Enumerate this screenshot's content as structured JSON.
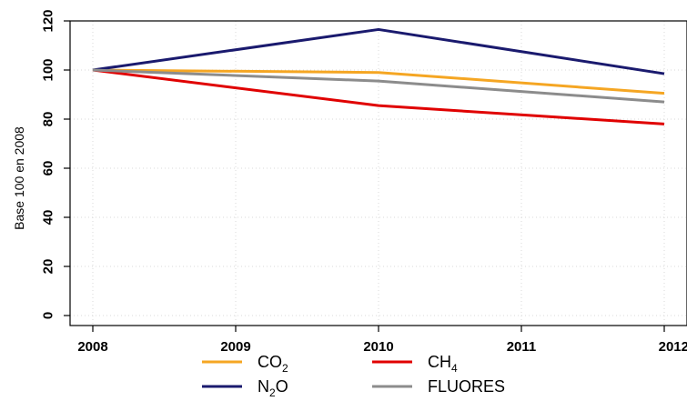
{
  "chart_data": {
    "type": "line",
    "xlabel": "",
    "ylabel": "Base 100 en 2008",
    "x": [
      2008,
      2009,
      2010,
      2011,
      2012
    ],
    "x_ticks": [
      "2008",
      "2009",
      "2010",
      "2011",
      "2012"
    ],
    "y_ticks": [
      "0",
      "20",
      "40",
      "60",
      "80",
      "100",
      "120"
    ],
    "ylim": [
      0,
      120
    ],
    "xlim": [
      2008,
      2012
    ],
    "grid": true,
    "legend_position": "bottom",
    "series": [
      {
        "name": "CO",
        "subscript": "2",
        "color": "#F5A623",
        "x": [
          2008,
          2010,
          2012
        ],
        "values": [
          100,
          99,
          90.5
        ]
      },
      {
        "name": "CH",
        "subscript": "4",
        "color": "#E00000",
        "x": [
          2008,
          2010,
          2012
        ],
        "values": [
          100,
          85.5,
          78
        ]
      },
      {
        "name": "N",
        "subscript": "2",
        "suffix": "O",
        "color": "#1A1A6E",
        "x": [
          2008,
          2010,
          2012
        ],
        "values": [
          100,
          116.5,
          98.5
        ]
      },
      {
        "name": "FLUORES",
        "subscript": "",
        "color": "#8C8C8C",
        "x": [
          2008,
          2010,
          2012
        ],
        "values": [
          100,
          95.5,
          87
        ]
      }
    ]
  }
}
